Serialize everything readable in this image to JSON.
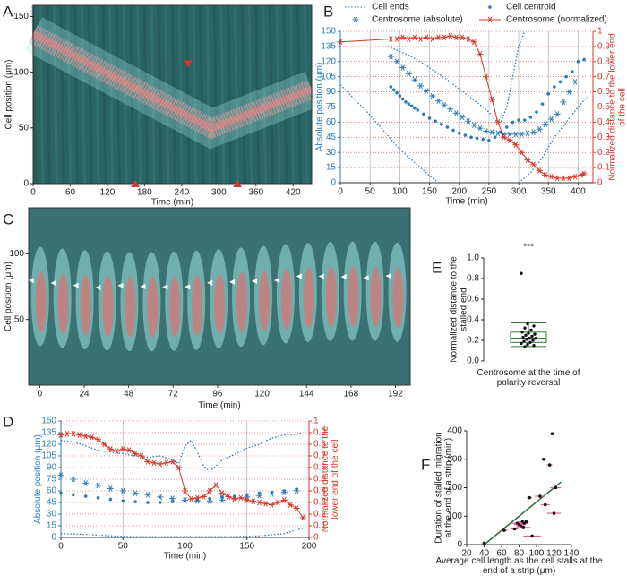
{
  "chart_data": [
    {
      "panel": "A",
      "type": "image",
      "xlabel": "Time (min)",
      "ylabel": "Cell position (μm)",
      "xlim": [
        0,
        450
      ],
      "xticks": [
        0,
        60,
        120,
        180,
        240,
        300,
        360,
        420
      ],
      "ylim": [
        0,
        160
      ],
      "yticks": [
        0,
        50,
        100,
        150
      ],
      "arrows": {
        "x": [
          250,
          165,
          330
        ],
        "values": [
          105,
          0,
          0
        ],
        "color": "#d8372b"
      }
    },
    {
      "panel": "B",
      "type": "line",
      "xlabel": "Time (min)",
      "ylabel": "Absolute position (μm)",
      "y2label": "Normalized distance to the lower end of the cell",
      "xlim": [
        0,
        425
      ],
      "xticks": [
        0,
        50,
        100,
        150,
        200,
        250,
        300,
        350,
        400
      ],
      "ylim": [
        0,
        150
      ],
      "yticks": [
        0,
        15,
        30,
        45,
        60,
        75,
        90,
        105,
        120,
        135,
        150
      ],
      "y2lim": [
        0,
        1
      ],
      "y2ticks": [
        0,
        0.1,
        0.2,
        0.3,
        0.4,
        0.5,
        0.6,
        0.7,
        0.8,
        0.9,
        1
      ],
      "grid": true,
      "legend": "above",
      "series": [
        {
          "name": "Cell ends",
          "color": "#2b7bba",
          "line": "dotted",
          "lines": [
            {
              "x": [
                80,
                100,
                120,
                140,
                160,
                180,
                200,
                220,
                240,
                250,
                260,
                270,
                280,
                290,
                300,
                310
              ],
              "values": [
                135,
                130,
                125,
                118,
                110,
                102,
                93,
                84,
                75,
                70,
                62,
                60,
                75,
                105,
                135,
                150
              ]
            },
            {
              "x": [
                0,
                25,
                50,
                75,
                100,
                125,
                150,
                165
              ],
              "values": [
                97,
                82,
                67,
                50,
                33,
                20,
                7,
                0
              ]
            },
            {
              "x": [
                300,
                320,
                340,
                360,
                380,
                400,
                415
              ],
              "values": [
                0,
                10,
                25,
                45,
                60,
                75,
                85
              ]
            }
          ]
        },
        {
          "name": "Cell centroid",
          "color": "#2b7bba",
          "marker": "dot",
          "x": [
            85,
            90,
            95,
            100,
            105,
            110,
            115,
            120,
            125,
            130,
            140,
            150,
            160,
            170,
            180,
            190,
            200,
            210,
            220,
            230,
            240,
            250,
            260,
            270,
            280,
            290,
            300,
            310,
            320,
            330,
            340,
            350,
            360,
            370,
            380,
            390,
            400,
            410
          ],
          "values": [
            95,
            92,
            89,
            86,
            83,
            80,
            78,
            76,
            74,
            72,
            68,
            64,
            61,
            58,
            55,
            52,
            49,
            47,
            45,
            44,
            43,
            42,
            45,
            50,
            55,
            60,
            62,
            62,
            65,
            70,
            78,
            88,
            95,
            100,
            105,
            110,
            120,
            122
          ]
        },
        {
          "name": "Centrosome (absolute)",
          "color": "#2b7bba",
          "marker": "asterisk",
          "x": [
            85,
            95,
            105,
            115,
            125,
            135,
            145,
            155,
            165,
            175,
            185,
            195,
            205,
            215,
            225,
            235,
            245,
            255,
            265,
            275,
            285,
            295,
            305,
            315,
            325,
            335,
            345,
            355,
            365,
            375,
            385,
            395
          ],
          "values": [
            125,
            120,
            114,
            108,
            102,
            96,
            91,
            86,
            81,
            77,
            73,
            69,
            65,
            61,
            57,
            54,
            51,
            50,
            49,
            48,
            48,
            48,
            48,
            49,
            50,
            53,
            58,
            63,
            68,
            80,
            90,
            100
          ]
        },
        {
          "name": "Centrosome (normalized)",
          "color": "#d8372b",
          "marker": "asterisk",
          "line": "solid",
          "axis": "y2",
          "x": [
            0,
            85,
            95,
            105,
            115,
            125,
            135,
            145,
            155,
            165,
            175,
            185,
            195,
            205,
            215,
            225,
            235,
            245,
            255,
            265,
            275,
            285,
            295,
            305,
            315,
            325,
            335,
            345,
            355,
            365,
            375,
            385,
            395,
            405,
            410
          ],
          "values": [
            0.93,
            0.95,
            0.95,
            0.96,
            0.95,
            0.96,
            0.95,
            0.96,
            0.95,
            0.96,
            0.96,
            0.97,
            0.96,
            0.96,
            0.95,
            0.93,
            0.85,
            0.7,
            0.55,
            0.4,
            0.3,
            0.28,
            0.25,
            0.2,
            0.15,
            0.12,
            0.08,
            0.05,
            0.04,
            0.03,
            0.03,
            0.03,
            0.04,
            0.05,
            0.06
          ]
        }
      ]
    },
    {
      "panel": "C",
      "type": "image",
      "xlabel": "Time (min)",
      "ylabel": "Cell position (μm)",
      "xlim": [
        -6,
        200
      ],
      "xticks": [
        0,
        24,
        48,
        72,
        96,
        120,
        144,
        168,
        192
      ],
      "ylim": [
        0,
        135
      ],
      "yticks": [
        50,
        100
      ]
    },
    {
      "panel": "E",
      "type": "box",
      "ylabel": "Normalized distance to the stalled end",
      "category": "Centrosome at the time of polarity reversal",
      "annotation": "***",
      "color": "#2e7d32",
      "ylim": [
        0,
        1
      ],
      "yticks": [
        {
          "value": 0,
          "label": "0.0"
        },
        {
          "value": 0.2,
          "label": "0.2"
        },
        {
          "value": 0.4,
          "label": "0.4"
        },
        {
          "value": 0.6,
          "label": "0.6"
        },
        {
          "value": 0.8,
          "label": "0.8"
        },
        {
          "value": 1,
          "label": "1.0"
        }
      ],
      "box": {
        "whisker_low": 0.14,
        "q1": 0.18,
        "median": 0.22,
        "q3": 0.28,
        "whisker_high": 0.37
      },
      "points": [
        0.85,
        0.36,
        0.34,
        0.32,
        0.3,
        0.28,
        0.27,
        0.26,
        0.25,
        0.24,
        0.23,
        0.22,
        0.22,
        0.21,
        0.2,
        0.19,
        0.18,
        0.17,
        0.16,
        0.15,
        0.14
      ]
    },
    {
      "panel": "D",
      "type": "line",
      "xlabel": "Time (min)",
      "ylabel": "Absolute position (μm)",
      "y2label": "Normalized distance to the lower end of the cell",
      "xlim": [
        0,
        200
      ],
      "xticks": [
        0,
        50,
        100,
        150,
        200
      ],
      "ylim": [
        0,
        150
      ],
      "yticks": [
        0,
        15,
        30,
        45,
        60,
        75,
        90,
        105,
        120,
        135,
        150
      ],
      "y2lim": [
        0,
        1
      ],
      "y2ticks": [
        0,
        0.1,
        0.2,
        0.3,
        0.4,
        0.5,
        0.6,
        0.7,
        0.8,
        0.9,
        1
      ],
      "grid": true,
      "series": [
        {
          "color": "#2b7bba",
          "line": "dotted",
          "lines": [
            {
              "x": [
                0,
                10,
                20,
                30,
                40,
                50,
                60,
                70,
                80,
                90,
                95,
                100,
                105,
                110,
                115,
                120,
                125,
                130,
                140,
                150,
                160,
                170,
                180,
                190,
                195
              ],
              "values": [
                125,
                123,
                118,
                112,
                110,
                108,
                105,
                103,
                105,
                100,
                95,
                118,
                125,
                110,
                92,
                85,
                92,
                100,
                107,
                115,
                120,
                128,
                132,
                133,
                135
              ]
            },
            {
              "x": [
                0,
                20,
                40,
                60,
                80,
                100,
                120,
                140,
                160,
                180,
                195
              ],
              "values": [
                5,
                4,
                2,
                1,
                1,
                1,
                1,
                1,
                2,
                5,
                12
              ]
            }
          ]
        },
        {
          "color": "#2b7bba",
          "marker": "dot",
          "x": [
            0,
            10,
            20,
            30,
            40,
            50,
            60,
            70,
            80,
            90,
            100,
            110,
            120,
            130,
            140,
            150,
            160,
            170,
            180,
            190
          ],
          "values": [
            57,
            55,
            53,
            51,
            49,
            47,
            46,
            45,
            45,
            46,
            47,
            48,
            50,
            52,
            53,
            55,
            57,
            58,
            60,
            62
          ]
        },
        {
          "color": "#2b7bba",
          "marker": "asterisk",
          "x": [
            0,
            10,
            20,
            30,
            40,
            50,
            60,
            70,
            80,
            90,
            100,
            110,
            120,
            130,
            140,
            150,
            160,
            170,
            180,
            190
          ],
          "values": [
            80,
            75,
            70,
            67,
            63,
            60,
            57,
            55,
            52,
            50,
            48,
            47,
            47,
            48,
            50,
            52,
            54,
            56,
            58,
            60
          ]
        },
        {
          "color": "#d8372b",
          "marker": "asterisk",
          "line": "solid",
          "axis": "y2",
          "x": [
            0,
            5,
            10,
            15,
            20,
            25,
            30,
            35,
            40,
            45,
            50,
            55,
            60,
            65,
            70,
            75,
            80,
            85,
            90,
            95,
            100,
            105,
            110,
            115,
            120,
            125,
            130,
            135,
            140,
            145,
            150,
            155,
            160,
            165,
            170,
            175,
            180,
            185,
            190,
            195
          ],
          "values": [
            0.88,
            0.89,
            0.89,
            0.88,
            0.87,
            0.86,
            0.84,
            0.8,
            0.76,
            0.74,
            0.76,
            0.75,
            0.72,
            0.7,
            0.65,
            0.64,
            0.63,
            0.64,
            0.65,
            0.6,
            0.4,
            0.33,
            0.34,
            0.35,
            0.4,
            0.45,
            0.38,
            0.35,
            0.33,
            0.34,
            0.32,
            0.31,
            0.3,
            0.29,
            0.28,
            0.3,
            0.32,
            0.28,
            0.25,
            0.17
          ]
        }
      ]
    },
    {
      "panel": "F",
      "type": "scatter",
      "xlabel": "Average cell length as the cell stalls at the end of a strip (μm)",
      "ylabel": "Duration of stalled migration at the end of a strip (min)",
      "xlim": [
        20,
        140
      ],
      "xticks": [
        20,
        40,
        60,
        80,
        100,
        120,
        140
      ],
      "ylim": [
        0,
        400
      ],
      "yticks": [
        0,
        100,
        200,
        300,
        400
      ],
      "color": "#111111",
      "error_color": "#e0609a",
      "x": [
        40,
        63,
        75,
        78,
        80,
        82,
        84,
        85,
        86,
        88,
        92,
        95,
        104,
        108,
        110,
        115,
        118,
        120,
        122
      ],
      "values": [
        5,
        50,
        55,
        75,
        70,
        65,
        80,
        60,
        75,
        80,
        165,
        30,
        170,
        300,
        140,
        280,
        390,
        110,
        200
      ],
      "xerr": [
        2,
        4,
        4,
        8,
        6,
        5,
        6,
        8,
        5,
        3,
        3,
        10,
        6,
        4,
        5,
        3,
        3,
        8,
        6
      ],
      "fit": {
        "x": [
          40,
          128
        ],
        "values": [
          0,
          220
        ],
        "color": "#2e6b3a"
      }
    }
  ]
}
